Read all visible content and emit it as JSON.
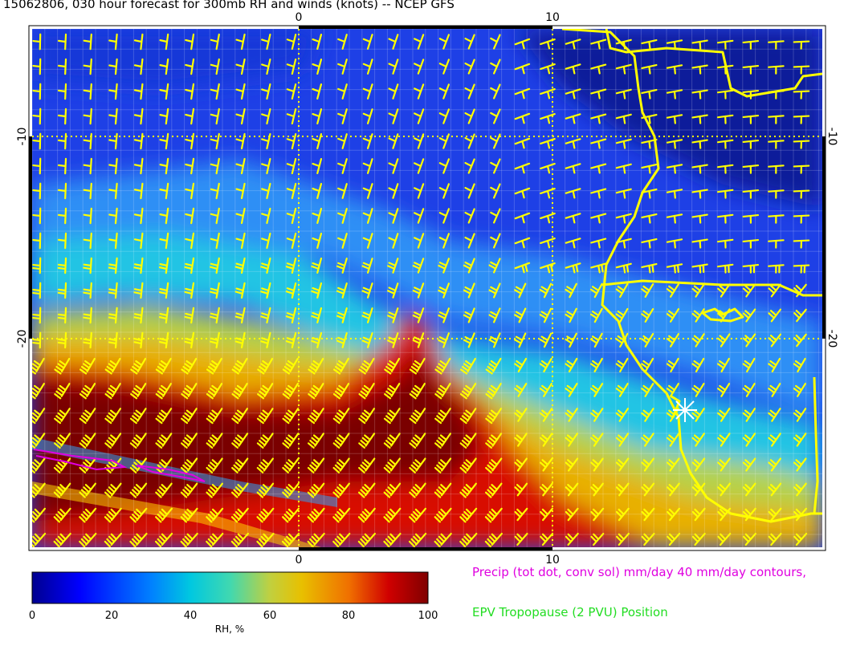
{
  "title": "15062806, 030 hour forecast for 300mb RH and winds (knots) -- NCEP GFS",
  "axes": {
    "top_ticks": [
      "0",
      "10"
    ],
    "bottom_ticks": [
      "0",
      "10"
    ],
    "left_ticks": [
      "-10",
      "-20"
    ],
    "right_ticks": [
      "-10",
      "-20"
    ]
  },
  "colorbar": {
    "ticks": [
      "0",
      "20",
      "40",
      "60",
      "80",
      "100"
    ],
    "unit_label": "RH, %",
    "colors": [
      "#00008f",
      "#0000ff",
      "#0080ff",
      "#00c8e0",
      "#40d8b0",
      "#c0d040",
      "#e8c000",
      "#f07000",
      "#d00000",
      "#800000"
    ]
  },
  "legend": {
    "precip_text": "Precip (tot dot, conv sol) mm/day 40 mm/day contours,",
    "precip_color": "#e000e0",
    "tropopause_text": "EPV Tropopause (2 PVU) Position",
    "tropopause_color": "#22dd22"
  },
  "map_colors": {
    "barb_color": "#ffff00",
    "coast_color": "#ffff00",
    "marker_color": "#ffffff",
    "grid_color": "#ffffff",
    "contour_color": "#e000e0"
  },
  "icons": {
    "wind_barb": "wind-barb-icon",
    "station_marker": "asterisk-marker-icon"
  }
}
